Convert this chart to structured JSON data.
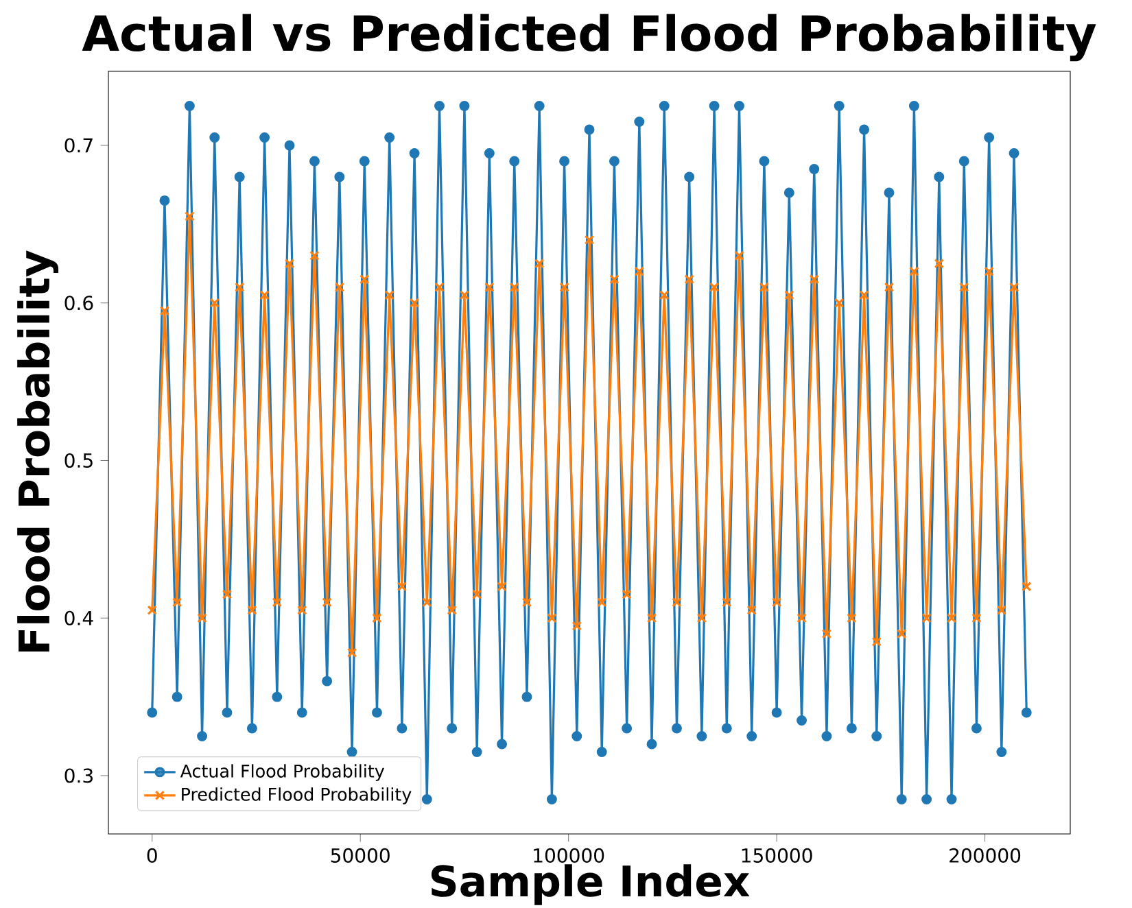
{
  "chart_data": {
    "type": "line",
    "title": "Actual vs Predicted Flood Probability",
    "xlabel": "Sample Index",
    "ylabel": "Flood Probability",
    "x": [
      0,
      3000,
      6000,
      9000,
      12000,
      15000,
      18000,
      21000,
      24000,
      27000,
      30000,
      33000,
      36000,
      39000,
      42000,
      45000,
      48000,
      51000,
      54000,
      57000,
      60000,
      63000,
      66000,
      69000,
      72000,
      75000,
      78000,
      81000,
      84000,
      87000,
      90000,
      93000,
      96000,
      99000,
      102000,
      105000,
      108000,
      111000,
      114000,
      117000,
      120000,
      123000,
      126000,
      129000,
      132000,
      135000,
      138000,
      141000,
      144000,
      147000,
      150000,
      153000,
      156000,
      159000,
      162000,
      165000,
      168000,
      171000,
      174000,
      177000,
      180000,
      183000,
      186000,
      189000,
      192000,
      195000,
      198000,
      201000,
      204000,
      207000,
      210000
    ],
    "series": [
      {
        "name": "Actual Flood Probability",
        "color": "#1f77b4",
        "marker": "circle",
        "values": [
          0.34,
          0.665,
          0.35,
          0.725,
          0.325,
          0.705,
          0.34,
          0.68,
          0.33,
          0.705,
          0.35,
          0.7,
          0.34,
          0.69,
          0.36,
          0.68,
          0.315,
          0.69,
          0.34,
          0.705,
          0.33,
          0.695,
          0.285,
          0.725,
          0.33,
          0.725,
          0.315,
          0.695,
          0.32,
          0.69,
          0.35,
          0.725,
          0.285,
          0.69,
          0.325,
          0.71,
          0.315,
          0.69,
          0.33,
          0.715,
          0.32,
          0.725,
          0.33,
          0.68,
          0.325,
          0.725,
          0.33,
          0.725,
          0.325,
          0.69,
          0.34,
          0.67,
          0.335,
          0.685,
          0.325,
          0.725,
          0.33,
          0.71,
          0.325,
          0.67,
          0.285,
          0.725,
          0.285,
          0.68,
          0.285,
          0.69,
          0.33,
          0.705,
          0.315,
          0.695,
          0.34
        ]
      },
      {
        "name": "Predicted Flood Probability",
        "color": "#ff7f0e",
        "marker": "cross",
        "values": [
          0.405,
          0.595,
          0.41,
          0.655,
          0.4,
          0.6,
          0.415,
          0.61,
          0.405,
          0.605,
          0.41,
          0.625,
          0.405,
          0.63,
          0.41,
          0.61,
          0.378,
          0.615,
          0.4,
          0.605,
          0.42,
          0.6,
          0.41,
          0.61,
          0.405,
          0.605,
          0.415,
          0.61,
          0.42,
          0.61,
          0.41,
          0.625,
          0.4,
          0.61,
          0.395,
          0.64,
          0.41,
          0.615,
          0.415,
          0.62,
          0.4,
          0.605,
          0.41,
          0.615,
          0.4,
          0.61,
          0.41,
          0.63,
          0.405,
          0.61,
          0.41,
          0.605,
          0.4,
          0.615,
          0.39,
          0.6,
          0.4,
          0.605,
          0.385,
          0.61,
          0.39,
          0.62,
          0.4,
          0.625,
          0.4,
          0.61,
          0.4,
          0.62,
          0.405,
          0.61,
          0.42
        ]
      }
    ],
    "xlim": [
      -10500,
      220500
    ],
    "ylim": [
      0.263,
      0.747
    ],
    "xticks": [
      0,
      50000,
      100000,
      150000,
      200000
    ],
    "yticks": [
      0.3,
      0.4,
      0.5,
      0.6,
      0.7
    ],
    "legend": "bottom left"
  }
}
